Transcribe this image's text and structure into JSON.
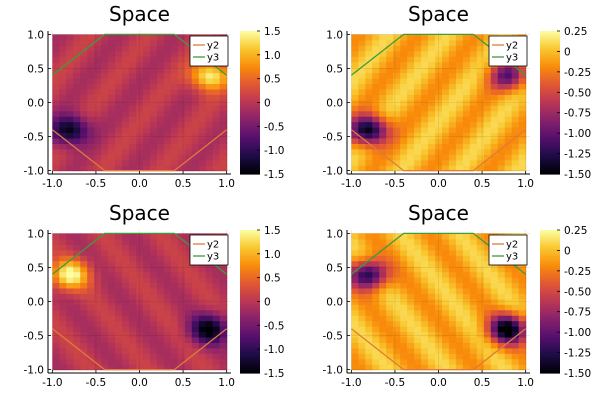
{
  "chart_data": [
    {
      "type": "heatmap",
      "title": "Space",
      "xlim": [
        -1.05,
        1.05
      ],
      "ylim": [
        -1.05,
        1.05
      ],
      "xticks": [
        "-1.0",
        "-0.5",
        "0.0",
        "0.5",
        "1.0"
      ],
      "yticks": [
        "1.0",
        "0.5",
        "0.0",
        "-0.5",
        "-1.0"
      ],
      "colormap": "inferno",
      "clim": [
        -1.5,
        1.5
      ],
      "colorbar_ticks": [
        "1.5",
        "1.0",
        "0.5",
        "0",
        "-0.5",
        "-1.0",
        "-1.5"
      ],
      "field": {
        "minimum": {
          "x": -0.8,
          "y": -0.4,
          "value": -1.5
        },
        "maximum": {
          "x": 0.8,
          "y": 0.4,
          "value": 1.5
        }
      },
      "grid": true,
      "legend_position": "top-right",
      "series": [
        {
          "name": "y2",
          "color": "#e07b39",
          "x": [
            -1.0,
            -0.4,
            0.4,
            1.0
          ],
          "y": [
            -0.4,
            -1.0,
            -1.0,
            -0.4
          ]
        },
        {
          "name": "y3",
          "color": "#3e9b3e",
          "x": [
            -1.0,
            -0.4,
            0.4,
            1.0
          ],
          "y": [
            0.4,
            1.0,
            1.0,
            0.4
          ]
        }
      ]
    },
    {
      "type": "heatmap",
      "title": "Space",
      "xlim": [
        -1.05,
        1.05
      ],
      "ylim": [
        -1.05,
        1.05
      ],
      "xticks": [
        "-1.0",
        "-0.5",
        "0.0",
        "0.5",
        "1.0"
      ],
      "yticks": [
        "1.0",
        "0.5",
        "0.0",
        "-0.5",
        "-1.0"
      ],
      "colormap": "inferno",
      "clim": [
        -1.5,
        0.25
      ],
      "colorbar_ticks": [
        "0.25",
        "0",
        "-0.25",
        "-0.50",
        "-0.75",
        "-1.00",
        "-1.25",
        "-1.50"
      ],
      "field": {
        "minimum": {
          "x": -0.8,
          "y": -0.4,
          "value": -1.5
        },
        "secondary_minimum": {
          "x": 0.8,
          "y": 0.4,
          "value": -0.9
        }
      },
      "grid": true,
      "legend_position": "top-right",
      "series": [
        {
          "name": "y2",
          "color": "#e07b39",
          "x": [
            -1.0,
            -0.4,
            0.4,
            1.0
          ],
          "y": [
            -0.4,
            -1.0,
            -1.0,
            -0.4
          ]
        },
        {
          "name": "y3",
          "color": "#3e9b3e",
          "x": [
            -1.0,
            -0.4,
            0.4,
            1.0
          ],
          "y": [
            0.4,
            1.0,
            1.0,
            0.4
          ]
        }
      ]
    },
    {
      "type": "heatmap",
      "title": "Space",
      "xlim": [
        -1.05,
        1.05
      ],
      "ylim": [
        -1.05,
        1.05
      ],
      "xticks": [
        "-1.0",
        "-0.5",
        "0.0",
        "0.5",
        "1.0"
      ],
      "yticks": [
        "1.0",
        "0.5",
        "0.0",
        "-0.5",
        "-1.0"
      ],
      "colormap": "inferno",
      "clim": [
        -1.5,
        1.5
      ],
      "colorbar_ticks": [
        "1.5",
        "1.0",
        "0.5",
        "0",
        "-0.5",
        "-1.0",
        "-1.5"
      ],
      "field": {
        "maximum": {
          "x": -0.8,
          "y": 0.4,
          "value": 1.5
        },
        "minimum": {
          "x": 0.8,
          "y": -0.4,
          "value": -1.5
        }
      },
      "grid": true,
      "legend_position": "top-right",
      "series": [
        {
          "name": "y2",
          "color": "#e07b39",
          "x": [
            -1.0,
            -0.4,
            0.4,
            1.0
          ],
          "y": [
            -0.4,
            -1.0,
            -1.0,
            -0.4
          ]
        },
        {
          "name": "y3",
          "color": "#3e9b3e",
          "x": [
            -1.0,
            -0.4,
            0.4,
            1.0
          ],
          "y": [
            0.4,
            1.0,
            1.0,
            0.4
          ]
        }
      ]
    },
    {
      "type": "heatmap",
      "title": "Space",
      "xlim": [
        -1.05,
        1.05
      ],
      "ylim": [
        -1.05,
        1.05
      ],
      "xticks": [
        "-1.0",
        "-0.5",
        "0.0",
        "0.5",
        "1.0"
      ],
      "yticks": [
        "1.0",
        "0.5",
        "0.0",
        "-0.5",
        "-1.0"
      ],
      "colormap": "inferno",
      "clim": [
        -1.5,
        0.25
      ],
      "colorbar_ticks": [
        "0.25",
        "0",
        "-0.25",
        "-0.50",
        "-0.75",
        "-1.00",
        "-1.25",
        "-1.50"
      ],
      "field": {
        "minimum": {
          "x": 0.8,
          "y": -0.4,
          "value": -1.5
        },
        "secondary_minimum": {
          "x": -0.8,
          "y": 0.4,
          "value": -1.3
        }
      },
      "grid": true,
      "legend_position": "top-right",
      "series": [
        {
          "name": "y2",
          "color": "#e07b39",
          "x": [
            -1.0,
            -0.4,
            0.4,
            1.0
          ],
          "y": [
            -0.4,
            -1.0,
            -1.0,
            -0.4
          ]
        },
        {
          "name": "y3",
          "color": "#3e9b3e",
          "x": [
            -1.0,
            -0.4,
            0.4,
            1.0
          ],
          "y": [
            0.4,
            1.0,
            1.0,
            0.4
          ]
        }
      ]
    }
  ]
}
